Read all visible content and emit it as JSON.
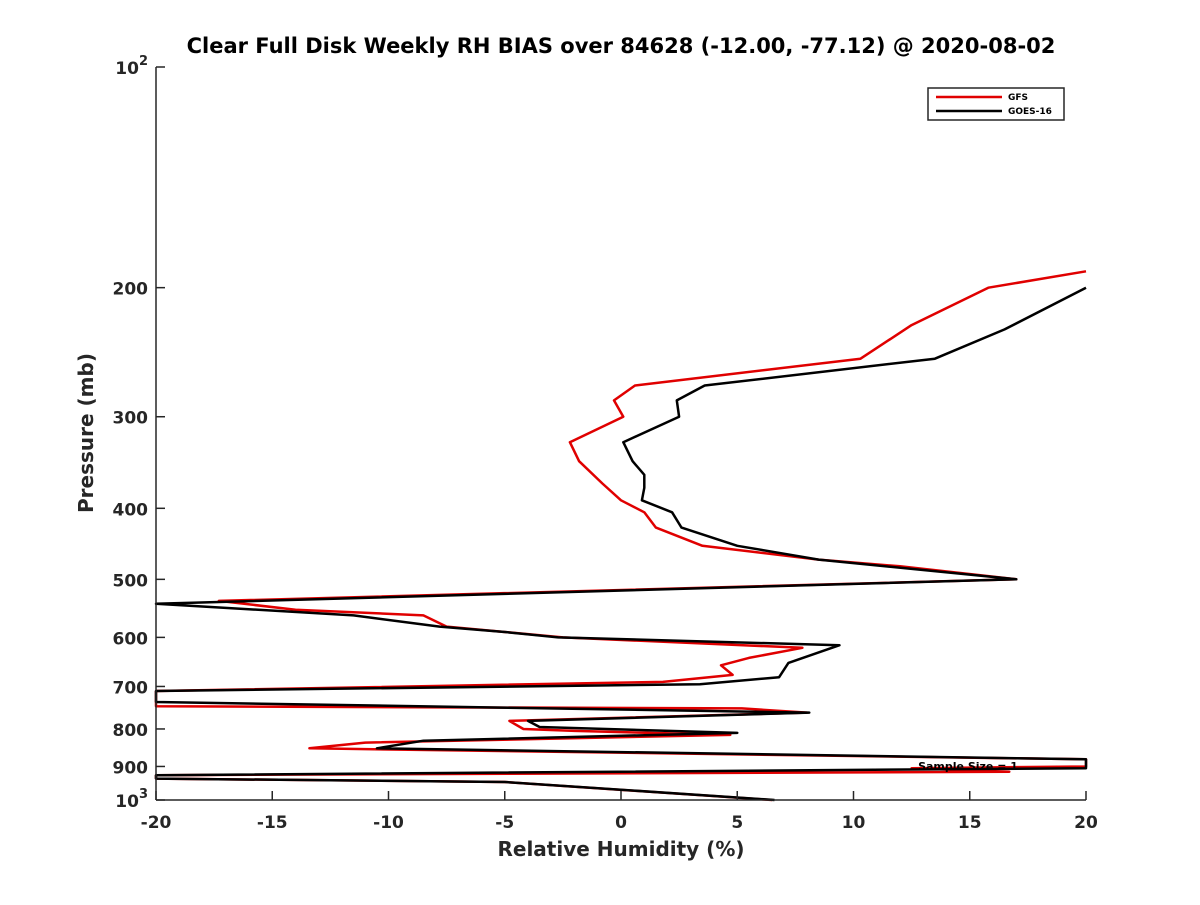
{
  "chart_data": {
    "type": "line",
    "title": "Clear Full Disk Weekly RH BIAS over 84628 (-12.00, -77.12) @ 2020-08-02",
    "xlabel": "Relative Humidity (%)",
    "ylabel": "Pressure (mb)",
    "xlim": [
      -20,
      20
    ],
    "ylim": [
      100,
      1000
    ],
    "yscale": "log",
    "y_reversed": true,
    "xticks": [
      {
        "value": -20,
        "label": "-20"
      },
      {
        "value": -15,
        "label": "-15"
      },
      {
        "value": -10,
        "label": "-10"
      },
      {
        "value": -5,
        "label": "-5"
      },
      {
        "value": 0,
        "label": "0"
      },
      {
        "value": 5,
        "label": "5"
      },
      {
        "value": 10,
        "label": "10"
      },
      {
        "value": 15,
        "label": "15"
      },
      {
        "value": 20,
        "label": "20"
      }
    ],
    "yticks": [
      {
        "value": 100,
        "label": "10",
        "sup": "2"
      },
      {
        "value": 200,
        "label": "200",
        "sup": ""
      },
      {
        "value": 300,
        "label": "300",
        "sup": ""
      },
      {
        "value": 400,
        "label": "400",
        "sup": ""
      },
      {
        "value": 500,
        "label": "500",
        "sup": ""
      },
      {
        "value": 600,
        "label": "600",
        "sup": ""
      },
      {
        "value": 700,
        "label": "700",
        "sup": ""
      },
      {
        "value": 800,
        "label": "800",
        "sup": ""
      },
      {
        "value": 900,
        "label": "900",
        "sup": ""
      },
      {
        "value": 1000,
        "label": "10",
        "sup": "3"
      }
    ],
    "grid": false,
    "legend_position": "top-right",
    "annotation": "Sample Size = 1",
    "series": [
      {
        "name": "GFS",
        "color": "#e00000",
        "points": [
          [
            20,
            190
          ],
          [
            15.8,
            200
          ],
          [
            12.5,
            225
          ],
          [
            10.3,
            250
          ],
          [
            0.6,
            272
          ],
          [
            -0.3,
            285
          ],
          [
            0.1,
            300
          ],
          [
            -2.2,
            325
          ],
          [
            -1.8,
            345
          ],
          [
            -0.8,
            370
          ],
          [
            0,
            390
          ],
          [
            1,
            405
          ],
          [
            1.5,
            425
          ],
          [
            3.5,
            450
          ],
          [
            8.5,
            470
          ],
          [
            12,
            480
          ],
          [
            17,
            500
          ],
          [
            -17.3,
            535
          ],
          [
            -14,
            550
          ],
          [
            -8.5,
            560
          ],
          [
            -7.5,
            580
          ],
          [
            -5,
            590
          ],
          [
            -2.5,
            600
          ],
          [
            7.8,
            620
          ],
          [
            5.5,
            640
          ],
          [
            4.3,
            655
          ],
          [
            4.8,
            675
          ],
          [
            1.8,
            690
          ],
          [
            -20,
            710
          ],
          [
            -20,
            745
          ],
          [
            5.2,
            750
          ],
          [
            8,
            760
          ],
          [
            -4.8,
            780
          ],
          [
            -4.2,
            800
          ],
          [
            -2,
            805
          ],
          [
            4.7,
            815
          ],
          [
            -11,
            835
          ],
          [
            -13.4,
            850
          ],
          [
            20,
            880
          ],
          [
            20,
            900
          ],
          [
            12.5,
            905
          ],
          [
            16.7,
            915
          ],
          [
            -20,
            925
          ],
          [
            -20,
            935
          ],
          [
            -5,
            945
          ],
          [
            6.5,
            1000
          ]
        ]
      },
      {
        "name": "GOES-16",
        "color": "#000000",
        "points": [
          [
            20,
            200
          ],
          [
            16.5,
            228
          ],
          [
            13.5,
            250
          ],
          [
            3.6,
            272
          ],
          [
            2.4,
            285
          ],
          [
            2.5,
            300
          ],
          [
            0.1,
            325
          ],
          [
            0.5,
            345
          ],
          [
            1,
            360
          ],
          [
            1,
            375
          ],
          [
            0.9,
            390
          ],
          [
            2.2,
            405
          ],
          [
            2.6,
            425
          ],
          [
            5,
            450
          ],
          [
            8.5,
            470
          ],
          [
            17,
            500
          ],
          [
            -20,
            540
          ],
          [
            -11.5,
            560
          ],
          [
            -7.8,
            580
          ],
          [
            -5,
            590
          ],
          [
            -2.7,
            600
          ],
          [
            9.4,
            615
          ],
          [
            7.2,
            650
          ],
          [
            6.8,
            680
          ],
          [
            3.4,
            695
          ],
          [
            -20,
            710
          ],
          [
            -20,
            735
          ],
          [
            8.1,
            760
          ],
          [
            -4,
            780
          ],
          [
            -3.5,
            795
          ],
          [
            5,
            810
          ],
          [
            -8.5,
            830
          ],
          [
            -10.5,
            850
          ],
          [
            20,
            880
          ],
          [
            20,
            905
          ],
          [
            -20,
            925
          ],
          [
            -20,
            935
          ],
          [
            -5,
            945
          ],
          [
            6.6,
            1000
          ]
        ]
      }
    ]
  }
}
